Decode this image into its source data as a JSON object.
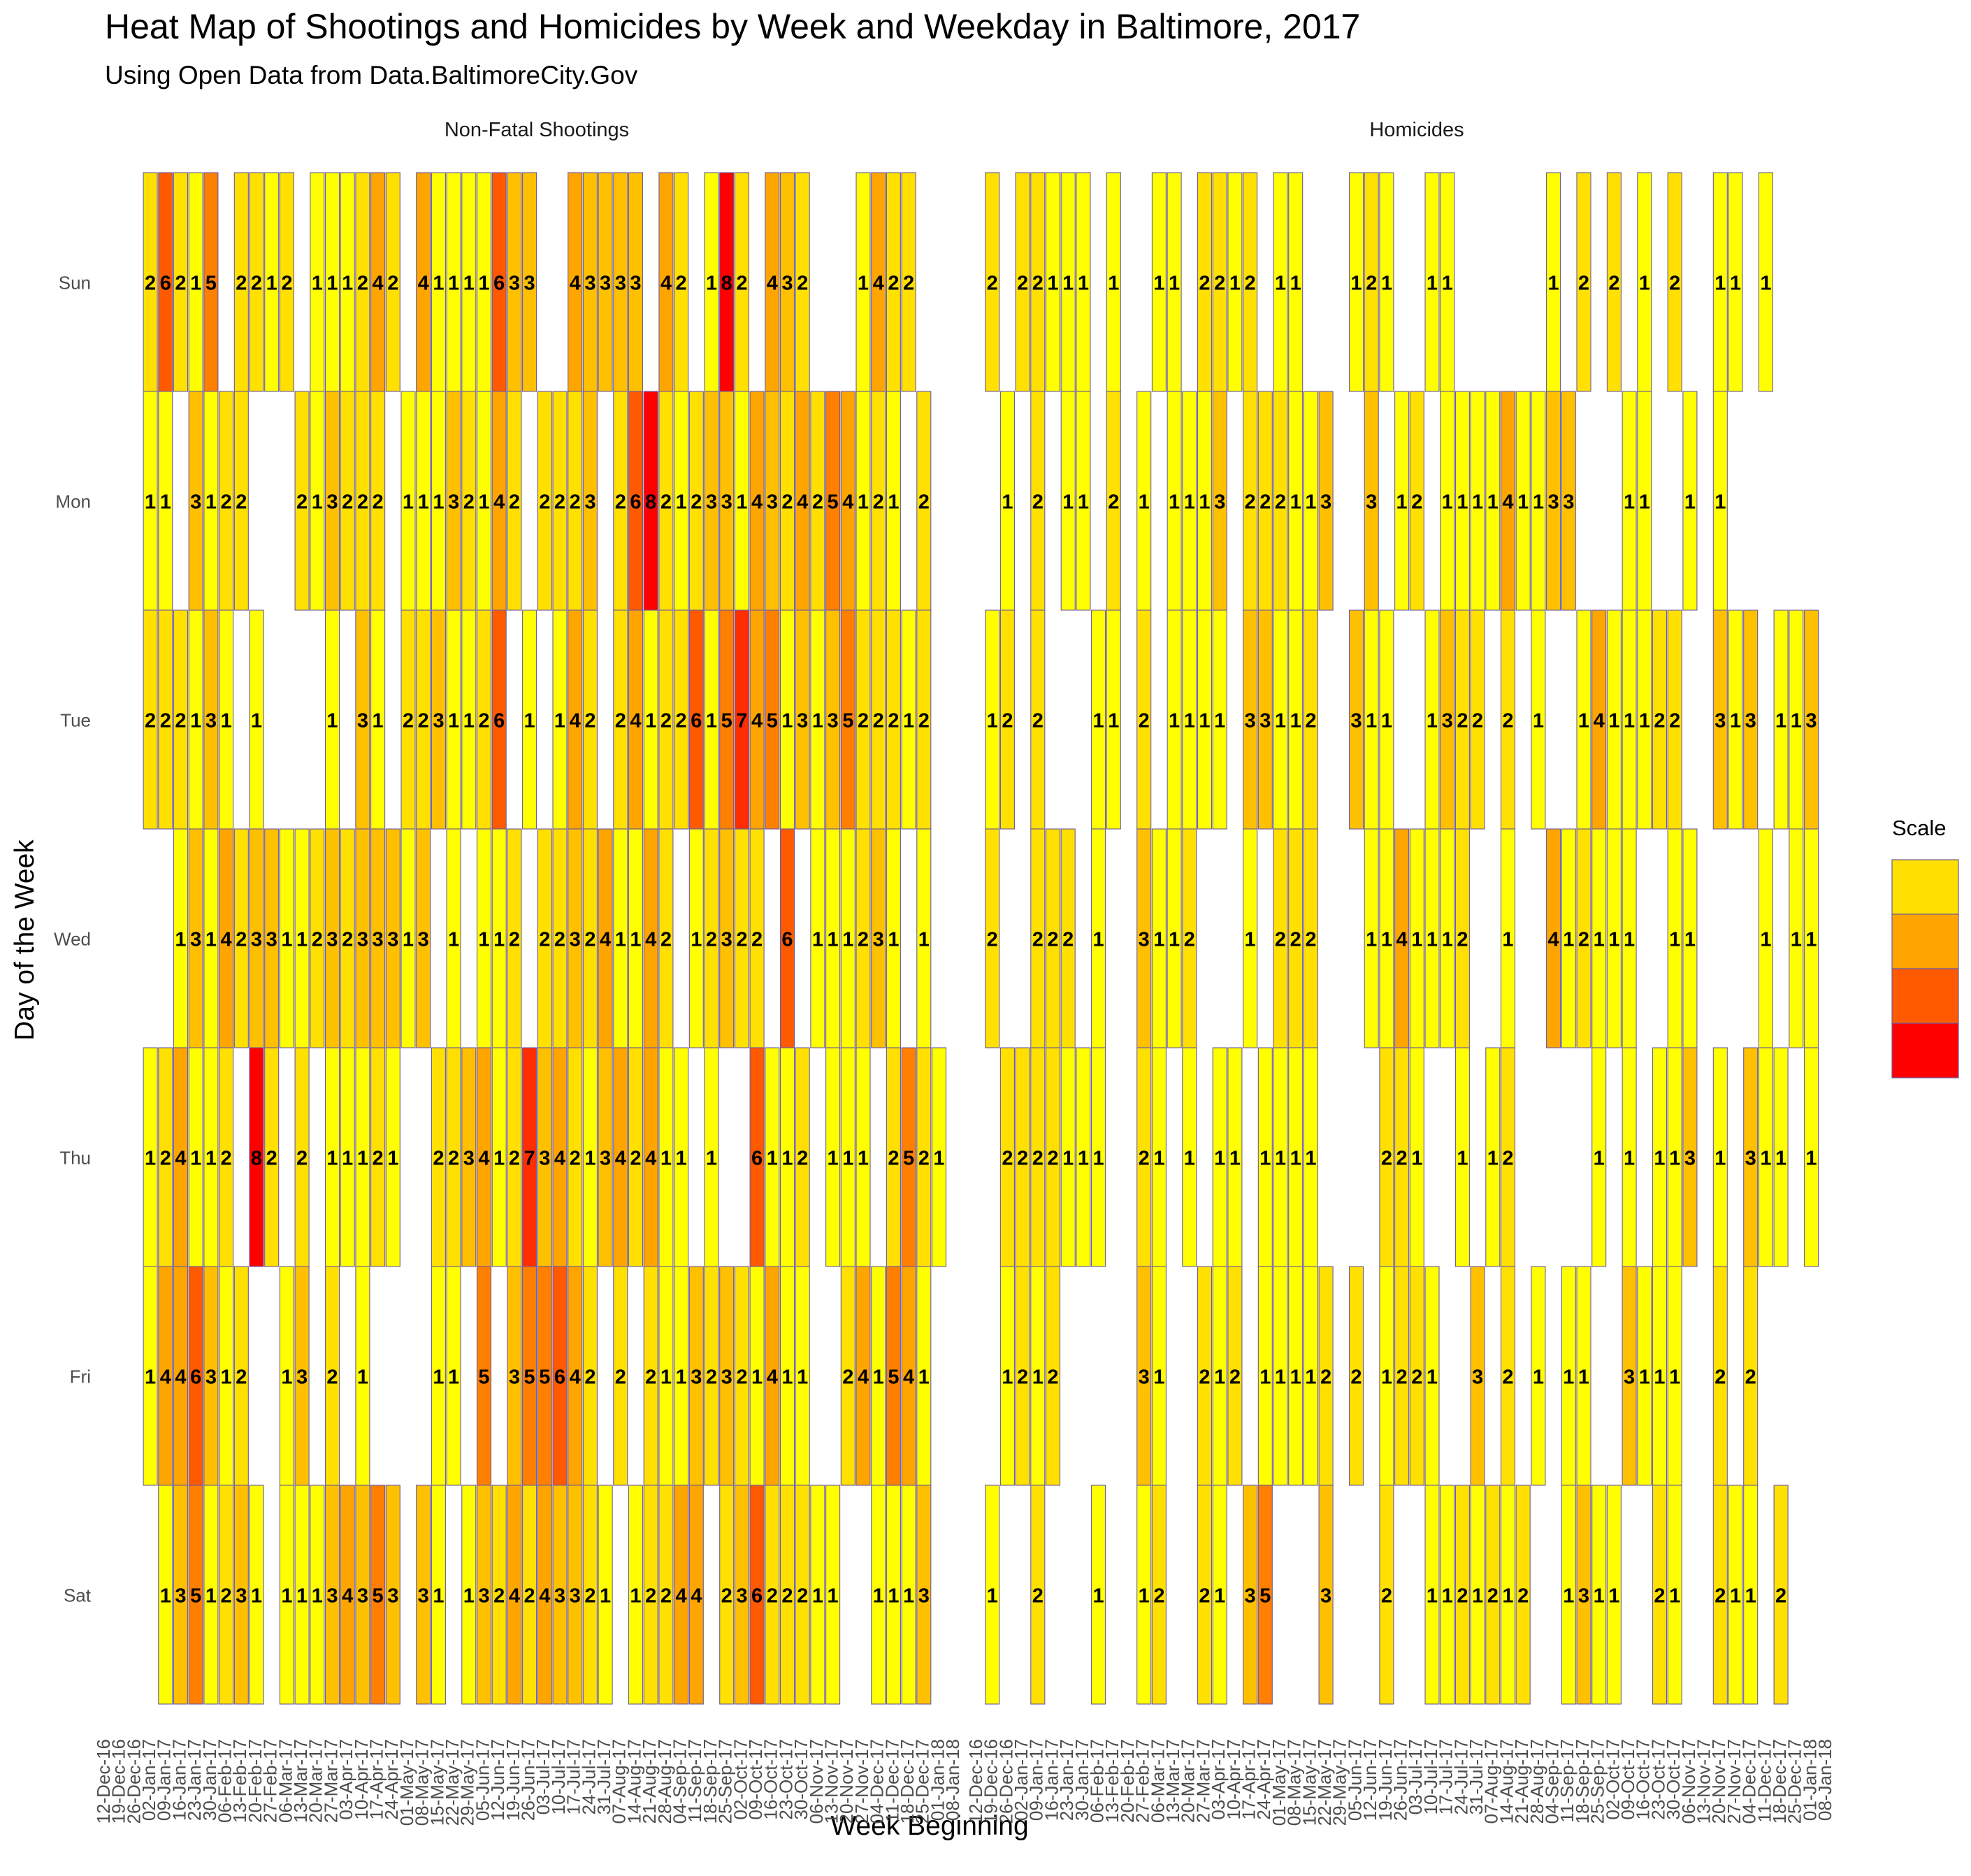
{
  "chart_data": {
    "type": "heatmap",
    "title": "Heat Map of Shootings and Homicides by Week and Weekday in Baltimore, 2017",
    "subtitle": "Using Open Data from Data.BaltimoreCity.Gov",
    "xlabel": "Week Beginning",
    "ylabel": "Day of the Week",
    "days": [
      "Sun",
      "Mon",
      "Tue",
      "Wed",
      "Thu",
      "Fri",
      "Sat"
    ],
    "week_ticks": [
      "12-Dec-16",
      "19-Dec-16",
      "26-Dec-16",
      "02-Jan-17",
      "09-Jan-17",
      "16-Jan-17",
      "23-Jan-17",
      "30-Jan-17",
      "06-Feb-17",
      "13-Feb-17",
      "20-Feb-17",
      "27-Feb-17",
      "06-Mar-17",
      "13-Mar-17",
      "20-Mar-17",
      "27-Mar-17",
      "03-Apr-17",
      "10-Apr-17",
      "17-Apr-17",
      "24-Apr-17",
      "01-May-17",
      "08-May-17",
      "15-May-17",
      "22-May-17",
      "29-May-17",
      "05-Jun-17",
      "12-Jun-17",
      "19-Jun-17",
      "26-Jun-17",
      "03-Jul-17",
      "10-Jul-17",
      "17-Jul-17",
      "24-Jul-17",
      "31-Jul-17",
      "07-Aug-17",
      "14-Aug-17",
      "21-Aug-17",
      "28-Aug-17",
      "04-Sep-17",
      "11-Sep-17",
      "18-Sep-17",
      "25-Sep-17",
      "02-Oct-17",
      "09-Oct-17",
      "16-Oct-17",
      "23-Oct-17",
      "30-Oct-17",
      "06-Nov-17",
      "13-Nov-17",
      "20-Nov-17",
      "27-Nov-17",
      "04-Dec-17",
      "11-Dec-17",
      "18-Dec-17",
      "25-Dec-17",
      "01-Jan-18",
      "08-Jan-18"
    ],
    "legend": {
      "title": "Scale",
      "breaks": [
        2,
        4,
        6,
        8
      ],
      "colors": [
        "#FFE000",
        "#FFA500",
        "#FF5A00",
        "#FF0000"
      ]
    },
    "color_scale": {
      "1": "#FFFF00",
      "2": "#FFE000",
      "3": "#FFC000",
      "4": "#FFA500",
      "5": "#FF7F00",
      "6": "#FF5A00",
      "7": "#FF2D00",
      "8": "#FF0000"
    },
    "panels": [
      {
        "name": "Non-Fatal Shootings",
        "first_week_index": 3,
        "rows": {
          "Sun": [
            2,
            6,
            2,
            1,
            5,
            0,
            2,
            2,
            1,
            2,
            0,
            1,
            1,
            1,
            2,
            4,
            2,
            0,
            4,
            1,
            1,
            1,
            1,
            6,
            3,
            3,
            0,
            0,
            4,
            3,
            3,
            3,
            3,
            0,
            4,
            2,
            0,
            1,
            8,
            2,
            0,
            4,
            3,
            2,
            0,
            0,
            0,
            1,
            4,
            2,
            2,
            0,
            0
          ],
          "Mon": [
            1,
            1,
            0,
            3,
            1,
            2,
            2,
            0,
            0,
            0,
            2,
            1,
            3,
            2,
            2,
            2,
            0,
            1,
            1,
            1,
            3,
            2,
            1,
            4,
            2,
            0,
            2,
            2,
            2,
            3,
            0,
            2,
            6,
            8,
            2,
            1,
            2,
            3,
            3,
            1,
            4,
            3,
            2,
            4,
            2,
            5,
            4,
            1,
            2,
            1,
            0,
            2,
            0
          ],
          "Tue": [
            2,
            2,
            2,
            1,
            3,
            1,
            0,
            1,
            0,
            0,
            0,
            0,
            1,
            0,
            3,
            1,
            0,
            2,
            2,
            3,
            1,
            1,
            2,
            6,
            0,
            1,
            0,
            1,
            4,
            2,
            0,
            2,
            4,
            1,
            2,
            2,
            6,
            1,
            5,
            7,
            4,
            5,
            1,
            3,
            1,
            3,
            5,
            2,
            2,
            2,
            1,
            2,
            0
          ],
          "Wed": [
            0,
            0,
            1,
            3,
            1,
            4,
            2,
            3,
            3,
            1,
            1,
            2,
            3,
            2,
            3,
            3,
            3,
            1,
            3,
            0,
            1,
            0,
            1,
            1,
            2,
            0,
            2,
            2,
            3,
            2,
            4,
            1,
            1,
            4,
            2,
            0,
            1,
            2,
            3,
            2,
            2,
            0,
            6,
            0,
            1,
            1,
            1,
            2,
            3,
            1,
            0,
            1,
            0
          ],
          "Thu": [
            1,
            2,
            4,
            1,
            1,
            2,
            0,
            8,
            2,
            0,
            2,
            0,
            1,
            1,
            1,
            2,
            1,
            0,
            0,
            2,
            2,
            3,
            4,
            1,
            2,
            7,
            3,
            4,
            2,
            1,
            3,
            4,
            2,
            4,
            1,
            1,
            0,
            1,
            0,
            0,
            6,
            1,
            1,
            2,
            0,
            1,
            1,
            1,
            0,
            2,
            5,
            2,
            1
          ],
          "Fri": [
            1,
            4,
            4,
            6,
            3,
            1,
            2,
            0,
            0,
            1,
            3,
            0,
            2,
            0,
            1,
            0,
            0,
            0,
            0,
            1,
            1,
            0,
            5,
            0,
            3,
            5,
            5,
            6,
            4,
            2,
            0,
            2,
            0,
            2,
            1,
            1,
            3,
            2,
            3,
            2,
            1,
            4,
            1,
            1,
            0,
            0,
            2,
            4,
            1,
            5,
            4,
            1,
            0
          ],
          "Sat": [
            0,
            1,
            3,
            5,
            1,
            2,
            3,
            1,
            0,
            1,
            1,
            1,
            3,
            4,
            3,
            5,
            3,
            0,
            3,
            1,
            0,
            1,
            3,
            2,
            4,
            2,
            4,
            3,
            3,
            2,
            1,
            0,
            1,
            2,
            2,
            4,
            4,
            0,
            2,
            3,
            6,
            2,
            2,
            2,
            1,
            1,
            0,
            0,
            1,
            1,
            1,
            3,
            0
          ]
        }
      },
      {
        "name": "Homicides",
        "first_week_index": 1,
        "rows": {
          "Sun": [
            2,
            0,
            2,
            2,
            1,
            1,
            1,
            0,
            1,
            0,
            0,
            1,
            1,
            0,
            2,
            2,
            1,
            2,
            0,
            1,
            1,
            0,
            0,
            0,
            1,
            2,
            1,
            0,
            0,
            1,
            1,
            0,
            0,
            0,
            0,
            0,
            0,
            1,
            0,
            2,
            0,
            2,
            0,
            1,
            0,
            2,
            0,
            0,
            1,
            1,
            0,
            1,
            0,
            0
          ],
          "Mon": [
            0,
            1,
            0,
            2,
            0,
            1,
            1,
            0,
            2,
            0,
            1,
            0,
            1,
            1,
            1,
            3,
            0,
            2,
            2,
            2,
            1,
            1,
            3,
            0,
            0,
            3,
            0,
            1,
            2,
            0,
            1,
            1,
            1,
            1,
            4,
            1,
            1,
            3,
            3,
            0,
            0,
            0,
            1,
            1,
            0,
            0,
            1,
            0,
            1,
            0,
            0,
            0,
            0,
            0
          ],
          "Tue": [
            1,
            2,
            0,
            2,
            0,
            0,
            0,
            1,
            1,
            0,
            2,
            0,
            1,
            1,
            1,
            1,
            0,
            3,
            3,
            1,
            1,
            2,
            0,
            0,
            3,
            1,
            1,
            0,
            0,
            1,
            3,
            2,
            2,
            0,
            2,
            0,
            1,
            0,
            0,
            1,
            4,
            1,
            1,
            1,
            2,
            2,
            0,
            0,
            3,
            1,
            3,
            0,
            1,
            1,
            3
          ],
          "Wed": [
            2,
            0,
            0,
            2,
            2,
            2,
            0,
            1,
            0,
            0,
            3,
            1,
            1,
            2,
            0,
            0,
            0,
            1,
            0,
            2,
            2,
            2,
            0,
            0,
            0,
            1,
            1,
            4,
            1,
            1,
            1,
            2,
            0,
            0,
            1,
            0,
            0,
            4,
            1,
            2,
            1,
            1,
            1,
            0,
            0,
            1,
            1,
            0,
            0,
            0,
            0,
            1,
            0,
            1,
            1
          ],
          "Thu": [
            0,
            2,
            2,
            2,
            2,
            1,
            1,
            1,
            0,
            0,
            2,
            1,
            0,
            1,
            0,
            1,
            1,
            0,
            1,
            1,
            1,
            1,
            0,
            0,
            0,
            0,
            2,
            2,
            1,
            0,
            0,
            1,
            0,
            1,
            2,
            0,
            0,
            0,
            0,
            0,
            1,
            0,
            1,
            0,
            1,
            1,
            3,
            0,
            1,
            0,
            3,
            1,
            1,
            0,
            1
          ],
          "Fri": [
            0,
            1,
            2,
            1,
            2,
            0,
            0,
            0,
            0,
            0,
            3,
            1,
            0,
            0,
            2,
            1,
            2,
            0,
            1,
            1,
            1,
            1,
            2,
            0,
            2,
            0,
            1,
            2,
            2,
            1,
            0,
            0,
            3,
            0,
            2,
            0,
            1,
            0,
            1,
            1,
            0,
            0,
            3,
            1,
            1,
            1,
            0,
            0,
            2,
            0,
            2,
            0,
            0,
            0,
            0
          ],
          "Sat": [
            1,
            0,
            0,
            2,
            0,
            0,
            0,
            1,
            0,
            0,
            1,
            2,
            0,
            0,
            2,
            1,
            0,
            3,
            5,
            0,
            0,
            0,
            3,
            0,
            0,
            0,
            2,
            0,
            0,
            1,
            1,
            2,
            1,
            2,
            1,
            2,
            0,
            0,
            1,
            3,
            1,
            1,
            0,
            0,
            2,
            1,
            0,
            0,
            2,
            1,
            1,
            0,
            2,
            0,
            0
          ]
        }
      }
    ]
  }
}
